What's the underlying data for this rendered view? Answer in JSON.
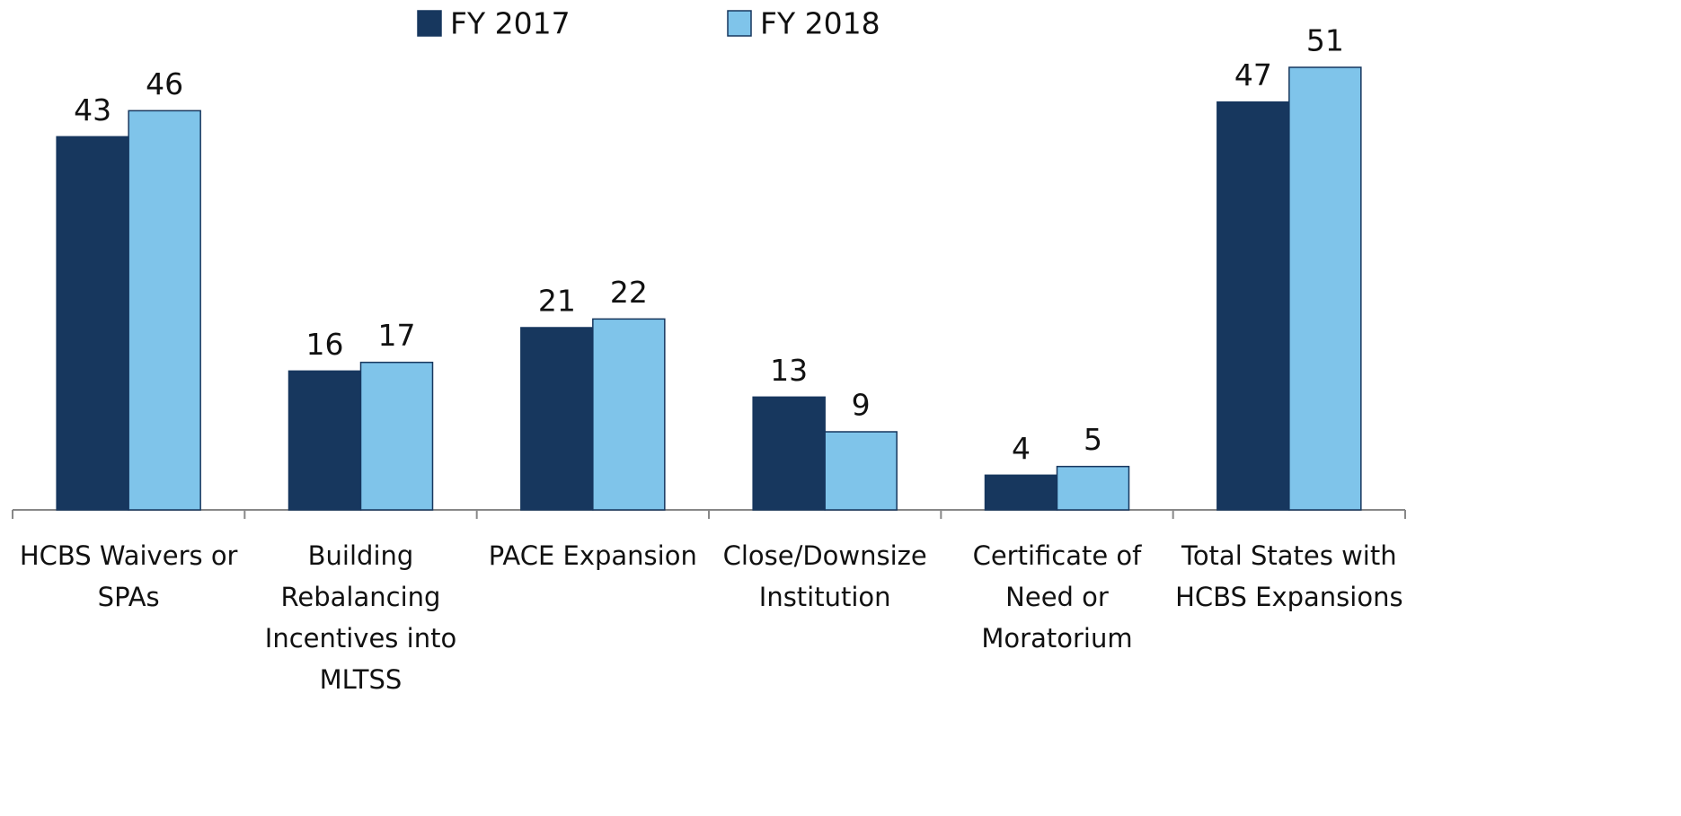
{
  "chart_data": {
    "type": "bar",
    "categories": [
      "HCBS Waivers or SPAs",
      "Building Rebalancing Incentives into MLTSS",
      "PACE Expansion",
      "Close/Downsize Institution",
      "Certificate of Need or Moratorium",
      "Total States with HCBS Expansions"
    ],
    "series": [
      {
        "name": "FY 2017",
        "color": "#17375e",
        "values": [
          43,
          16,
          21,
          13,
          4,
          47
        ]
      },
      {
        "name": "FY 2018",
        "color": "#7fc4ea",
        "values": [
          46,
          17,
          22,
          9,
          5,
          51
        ]
      }
    ],
    "legend": "top"
  }
}
